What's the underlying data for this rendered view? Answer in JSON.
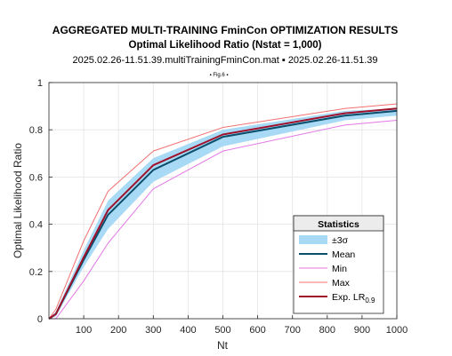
{
  "chart_data": {
    "type": "line",
    "title": "AGGREGATED MULTI-TRAINING FminCon OPTIMIZATION RESULTS",
    "subtitle": "Optimal Likelihood Ratio (Nstat = 1,000)",
    "subtitle2": "2025.02.26-11.51.39.multiTrainingFminCon.mat ▪ 2025.02.26-11.51.39",
    "figure_tag": "▪ Fig.6 ▪",
    "xlabel": "Nt",
    "ylabel": "Optimal Likelihood Ratio",
    "xlim": [
      0,
      1000
    ],
    "ylim": [
      0,
      1
    ],
    "xticks": [
      100,
      200,
      300,
      400,
      500,
      600,
      700,
      800,
      900,
      1000
    ],
    "yticks": [
      0,
      0.2,
      0.4,
      0.6,
      0.8,
      1
    ],
    "ytick_labels": [
      "0",
      "0.2",
      "0.4",
      "0.6",
      "0.8",
      "1"
    ],
    "grid": true,
    "legend": {
      "title": "Statistics",
      "placement": "bottom-right",
      "entries": [
        {
          "label": "±3σ",
          "kind": "band"
        },
        {
          "label": "Mean",
          "kind": "line",
          "color": "#0b4f6c"
        },
        {
          "label": "Min",
          "kind": "line",
          "color": "#e377e6"
        },
        {
          "label": "Max",
          "kind": "line",
          "color": "#f07070"
        },
        {
          "label": "Exp. LR",
          "subscript": "0.9",
          "kind": "line",
          "color": "#a0102a"
        }
      ]
    },
    "x": [
      0,
      20,
      100,
      170,
      300,
      500,
      850,
      1000
    ],
    "band": {
      "name": "±3σ",
      "color": "#a8daf5",
      "lower": [
        0,
        0.01,
        0.22,
        0.38,
        0.58,
        0.73,
        0.84,
        0.86
      ],
      "upper": [
        0,
        0.03,
        0.29,
        0.5,
        0.68,
        0.8,
        0.88,
        0.89
      ]
    },
    "series": [
      {
        "name": "Mean",
        "color": "#0b4f6c",
        "width": 2,
        "values": [
          0,
          0.02,
          0.25,
          0.44,
          0.63,
          0.77,
          0.86,
          0.88
        ]
      },
      {
        "name": "Min",
        "color": "#e377e6",
        "width": 1,
        "values": [
          0,
          0.0,
          0.16,
          0.32,
          0.55,
          0.71,
          0.82,
          0.84
        ]
      },
      {
        "name": "Max",
        "color": "#f07070",
        "width": 1,
        "values": [
          0,
          0.04,
          0.33,
          0.54,
          0.71,
          0.81,
          0.89,
          0.91
        ]
      },
      {
        "name": "Exp. LR",
        "color": "#a0102a",
        "width": 2,
        "values": [
          0,
          0.02,
          0.26,
          0.46,
          0.65,
          0.78,
          0.87,
          0.89
        ]
      }
    ]
  }
}
